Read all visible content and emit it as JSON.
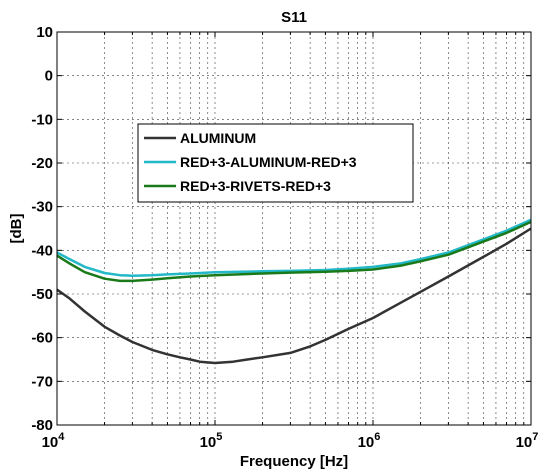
{
  "chart_data": {
    "type": "line",
    "title": "S11",
    "xlabel": "Frequency [Hz]",
    "ylabel": "[dB]",
    "x_scale": "log",
    "xlim": [
      10000,
      10000000
    ],
    "ylim": [
      -80,
      10
    ],
    "grid": true,
    "legend_position": "upper-left",
    "x_ticks": [
      {
        "value": 10000,
        "base": "10",
        "exp": "4"
      },
      {
        "value": 100000,
        "base": "10",
        "exp": "5"
      },
      {
        "value": 1000000,
        "base": "10",
        "exp": "6"
      },
      {
        "value": 10000000,
        "base": "10",
        "exp": "7"
      }
    ],
    "y_ticks": [
      10,
      0,
      -10,
      -20,
      -30,
      -40,
      -50,
      -60,
      -70,
      -80
    ],
    "series": [
      {
        "name": "ALUMINUM",
        "color": "#333333",
        "x": [
          10000,
          12000,
          15000,
          20000,
          25000,
          30000,
          40000,
          50000,
          60000,
          70000,
          80000,
          100000,
          130000,
          160000,
          200000,
          300000,
          400000,
          500000,
          700000,
          1000000,
          1500000,
          2000000,
          3000000,
          5000000,
          7000000,
          10000000
        ],
        "y": [
          -49,
          -51,
          -54,
          -57.5,
          -59.5,
          -61,
          -62.8,
          -63.8,
          -64.5,
          -65,
          -65.5,
          -65.8,
          -65.5,
          -65,
          -64.5,
          -63.5,
          -62,
          -60.5,
          -58,
          -55.5,
          -52,
          -49.5,
          -46,
          -41.5,
          -38.5,
          -35
        ]
      },
      {
        "name": "RED+3-ALUMINUM-RED+3",
        "color": "#22b8c8",
        "x": [
          10000,
          12000,
          15000,
          20000,
          25000,
          30000,
          40000,
          50000,
          70000,
          100000,
          200000,
          300000,
          500000,
          700000,
          1000000,
          1500000,
          2000000,
          3000000,
          5000000,
          7000000,
          10000000
        ],
        "y": [
          -40.5,
          -42,
          -43.8,
          -45.2,
          -45.7,
          -45.8,
          -45.7,
          -45.5,
          -45.3,
          -45,
          -44.8,
          -44.7,
          -44.5,
          -44.2,
          -43.8,
          -43,
          -42,
          -40.5,
          -37.5,
          -35.5,
          -33
        ]
      },
      {
        "name": "RED+3-RIVETS-RED+3",
        "color": "#1a7a1a",
        "x": [
          10000,
          12000,
          15000,
          20000,
          25000,
          30000,
          40000,
          50000,
          70000,
          100000,
          200000,
          300000,
          500000,
          700000,
          1000000,
          1500000,
          2000000,
          3000000,
          5000000,
          7000000,
          10000000
        ],
        "y": [
          -41.2,
          -43,
          -45,
          -46.5,
          -47,
          -47,
          -46.7,
          -46.4,
          -46,
          -45.7,
          -45.3,
          -45.1,
          -44.9,
          -44.7,
          -44.4,
          -43.5,
          -42.5,
          -41,
          -38,
          -36,
          -33.5
        ]
      }
    ]
  }
}
